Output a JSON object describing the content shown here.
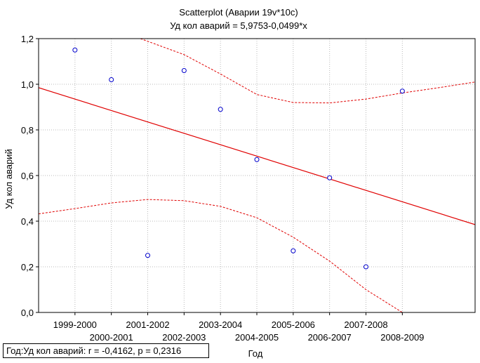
{
  "chart_data": {
    "type": "scatter",
    "title": "Scatterplot (Аварии 19v*10c)",
    "subtitle": "Уд кол аварий = 5,9753-0,0499*x",
    "xlabel": "Год",
    "ylabel": "Уд кол аварий",
    "categories": [
      "1999-2000",
      "2000-2001",
      "2001-2002",
      "2002-2003",
      "2003-2004",
      "2004-2005",
      "2005-2006",
      "2006-2007",
      "2007-2008",
      "2008-2009"
    ],
    "x_index": [
      1,
      2,
      3,
      4,
      5,
      6,
      7,
      8,
      9,
      10
    ],
    "values": [
      1.15,
      1.02,
      0.25,
      1.06,
      0.89,
      0.67,
      0.27,
      0.59,
      0.2,
      0.97
    ],
    "xlim": [
      0,
      12
    ],
    "ylim": [
      0,
      1.2
    ],
    "y_ticks": [
      "0,0",
      "0,2",
      "0,4",
      "0,6",
      "0,8",
      "1,0",
      "1,2"
    ],
    "regression_line": [
      [
        0,
        0.985
      ],
      [
        12,
        0.385
      ]
    ],
    "confidence_upper": [
      [
        2.8,
        1.2
      ],
      [
        4,
        1.13
      ],
      [
        5,
        1.045
      ],
      [
        6,
        0.955
      ],
      [
        7,
        0.92
      ],
      [
        8,
        0.918
      ],
      [
        9,
        0.935
      ],
      [
        10,
        0.962
      ],
      [
        11,
        0.985
      ],
      [
        12,
        1.01
      ]
    ],
    "confidence_lower": [
      [
        0,
        0.432
      ],
      [
        1,
        0.455
      ],
      [
        2,
        0.48
      ],
      [
        3,
        0.495
      ],
      [
        4,
        0.49
      ],
      [
        5,
        0.465
      ],
      [
        6,
        0.415
      ],
      [
        7,
        0.33
      ],
      [
        8,
        0.225
      ],
      [
        9,
        0.1
      ],
      [
        10,
        0
      ]
    ],
    "grid": true,
    "stats_label": "Год:Уд кол аварий:   r = -0,4162, p = 0,2316",
    "colors": {
      "points": "#0000cc",
      "fit_line": "#e00000",
      "grid": "#b8b8b8"
    }
  }
}
